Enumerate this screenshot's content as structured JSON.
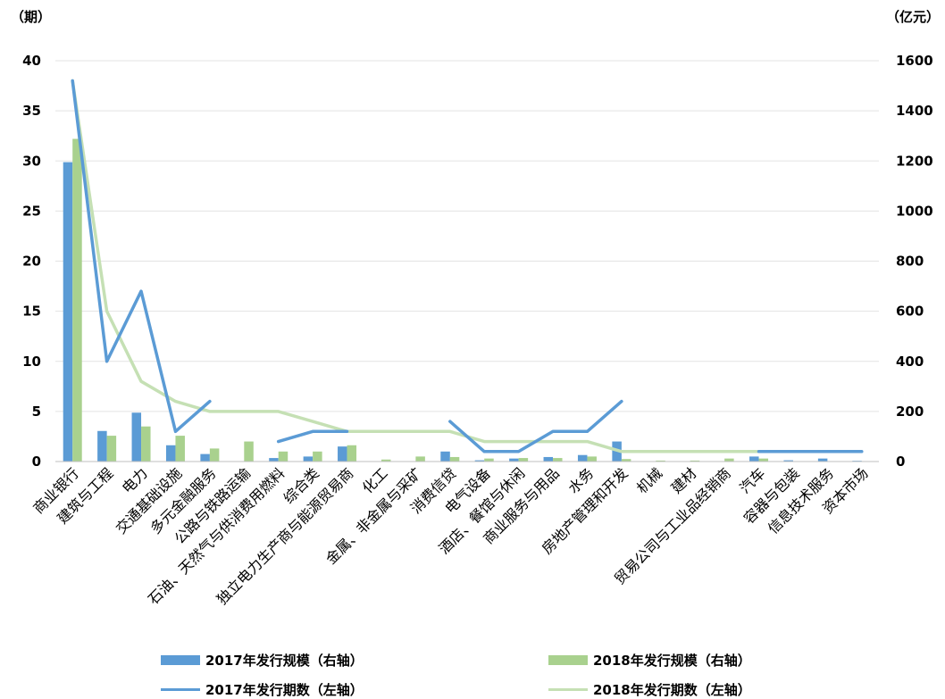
{
  "chart_data": {
    "type": "bar+line",
    "left_axis_unit": "（期）",
    "right_axis_unit": "（亿元）",
    "left_ylim": [
      0,
      40
    ],
    "left_ticks": [
      0,
      5,
      10,
      15,
      20,
      25,
      30,
      35,
      40
    ],
    "right_ylim": [
      0,
      1600
    ],
    "right_ticks": [
      0,
      200,
      400,
      600,
      800,
      1000,
      1200,
      1400,
      1600
    ],
    "grid": true,
    "legend_position": "bottom",
    "categories": [
      "商业银行",
      "建筑与工程",
      "电力",
      "交通基础设施",
      "多元金融服务",
      "公路与铁路运输",
      "石油、天然气与供消费用燃料",
      "综合类",
      "独立电力生产商与能源贸易商",
      "化工",
      "金属、非金属与采矿",
      "消费信贷",
      "电气设备",
      "酒店、餐馆与休闲",
      "商业服务与用品",
      "水务",
      "房地产管理和开发",
      "机械",
      "建材",
      "贸易公司与工业品经销商",
      "汽车",
      "容器与包装",
      "信息技术服务",
      "资本市场"
    ],
    "series": [
      {
        "name": "2017年发行规模（右轴）",
        "type": "bar",
        "axis": "right",
        "color": "#5b9bd5",
        "values": [
          1195,
          122,
          195,
          65,
          30,
          null,
          14,
          20,
          60,
          null,
          null,
          40,
          5,
          12,
          18,
          26,
          80,
          null,
          null,
          null,
          20,
          5,
          12,
          3
        ]
      },
      {
        "name": "2018年发行规模（右轴）",
        "type": "bar",
        "axis": "right",
        "color": "#a9d18e",
        "values": [
          1288,
          103,
          140,
          103,
          52,
          80,
          40,
          40,
          65,
          8,
          20,
          18,
          12,
          14,
          14,
          20,
          10,
          4,
          4,
          12,
          12,
          null,
          null,
          null
        ]
      },
      {
        "name": "2017年发行期数（左轴）",
        "type": "line",
        "axis": "left",
        "color": "#5b9bd5",
        "values": [
          38,
          10,
          17,
          3,
          6,
          null,
          2,
          3,
          3,
          null,
          null,
          4,
          1,
          1,
          3,
          3,
          6,
          null,
          null,
          null,
          1,
          1,
          1,
          1
        ]
      },
      {
        "name": "2018年发行期数（左轴）",
        "type": "line",
        "axis": "left",
        "color": "#c5e0b4",
        "values": [
          38,
          15,
          8,
          6,
          5,
          5,
          5,
          4,
          3,
          3,
          3,
          3,
          2,
          2,
          2,
          2,
          1,
          1,
          1,
          1,
          1,
          null,
          null,
          null
        ]
      }
    ]
  }
}
